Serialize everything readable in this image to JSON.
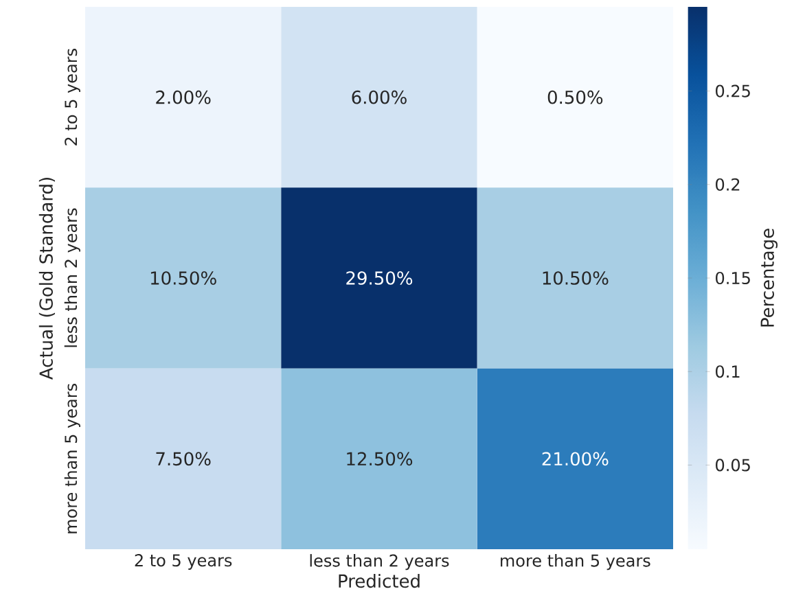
{
  "chart_data": {
    "type": "heatmap",
    "xlabel": "Predicted",
    "ylabel": "Actual (Gold Standard)",
    "clabel": "Percentage",
    "categories": [
      "2 to 5 years",
      "less than 2 years",
      "more than 5 years"
    ],
    "y_categories": [
      "2 to 5 years",
      "less than 2 years",
      "more than 5 years"
    ],
    "cells": [
      [
        0.02,
        0.06,
        0.005
      ],
      [
        0.105,
        0.295,
        0.105
      ],
      [
        0.075,
        0.125,
        0.21
      ]
    ],
    "cell_labels": [
      [
        "2.00%",
        "6.00%",
        "0.50%"
      ],
      [
        "10.50%",
        "29.50%",
        "10.50%"
      ],
      [
        "7.50%",
        "12.50%",
        "21.00%"
      ]
    ],
    "clim": [
      0.005,
      0.295
    ],
    "cticks": [
      0.05,
      0.1,
      0.15,
      0.2,
      0.25
    ]
  }
}
